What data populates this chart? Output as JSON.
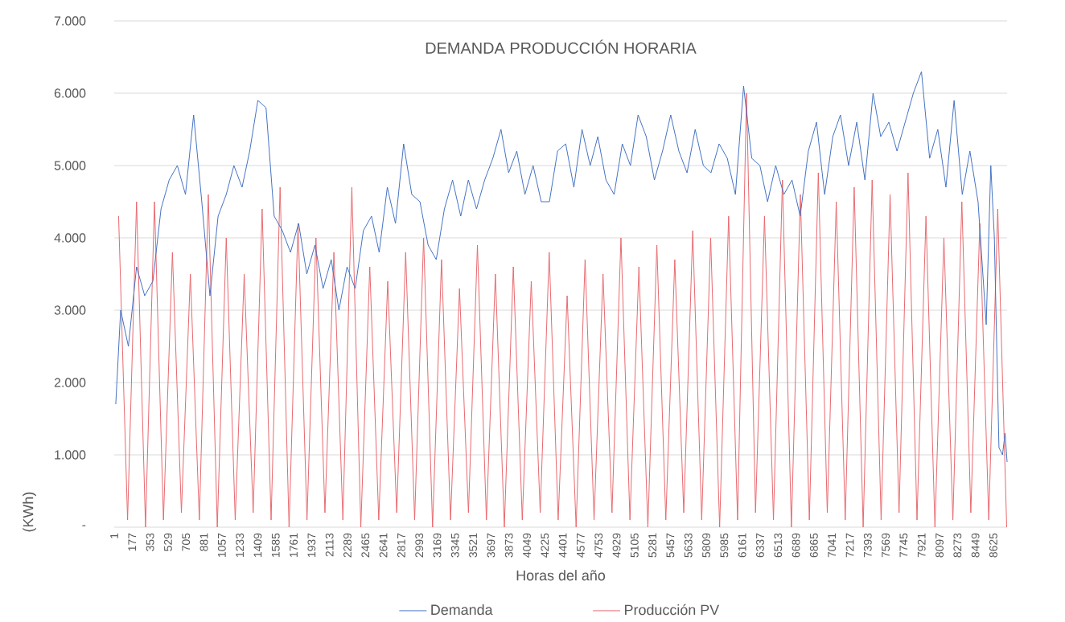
{
  "chart_data": {
    "type": "line",
    "title": "DEMANDA PRODUCCIÓN HORARIA",
    "xlabel": "Horas del año",
    "ylabel": "(KWh)",
    "xlim": [
      1,
      8760
    ],
    "ylim": [
      0,
      7000
    ],
    "xticks": [
      1,
      177,
      353,
      529,
      705,
      881,
      1057,
      1233,
      1409,
      1585,
      1761,
      1937,
      2113,
      2289,
      2465,
      2641,
      2817,
      2993,
      3169,
      3345,
      3521,
      3697,
      3873,
      4049,
      4225,
      4401,
      4577,
      4753,
      4929,
      5105,
      5281,
      5457,
      5633,
      5809,
      5985,
      6161,
      6337,
      6513,
      6689,
      6865,
      7041,
      7217,
      7393,
      7569,
      7745,
      7921,
      8097,
      8273,
      8449,
      8625
    ],
    "yticks": [
      {
        "value": 0,
        "label": "-"
      },
      {
        "value": 1000,
        "label": "1.000"
      },
      {
        "value": 2000,
        "label": "2.000"
      },
      {
        "value": 3000,
        "label": "3.000"
      },
      {
        "value": 4000,
        "label": "4.000"
      },
      {
        "value": 5000,
        "label": "5.000"
      },
      {
        "value": 6000,
        "label": "6.000"
      },
      {
        "value": 7000,
        "label": "7.000"
      }
    ],
    "grid": "y",
    "legend": "bottom",
    "series": [
      {
        "name": "Demanda",
        "color": "#4472c4",
        "x": [
          16,
          64,
          140,
          220,
          300,
          380,
          460,
          540,
          620,
          700,
          780,
          860,
          940,
          1020,
          1100,
          1175,
          1255,
          1330,
          1410,
          1490,
          1570,
          1650,
          1730,
          1810,
          1890,
          1970,
          2050,
          2130,
          2205,
          2285,
          2365,
          2445,
          2525,
          2600,
          2680,
          2760,
          2840,
          2920,
          3000,
          3080,
          3160,
          3240,
          3320,
          3400,
          3475,
          3555,
          3635,
          3715,
          3795,
          3870,
          3950,
          4030,
          4110,
          4190,
          4270,
          4350,
          4430,
          4510,
          4590,
          4670,
          4745,
          4825,
          4905,
          4985,
          5065,
          5140,
          5220,
          5300,
          5380,
          5460,
          5540,
          5620,
          5700,
          5780,
          5855,
          5935,
          6015,
          6095,
          6175,
          6255,
          6335,
          6410,
          6490,
          6570,
          6650,
          6730,
          6810,
          6890,
          6970,
          7050,
          7125,
          7205,
          7285,
          7365,
          7445,
          7520,
          7600,
          7680,
          7760,
          7840,
          7920,
          8000,
          8080,
          8160,
          8240,
          8320,
          8395,
          8475,
          8555,
          8600,
          8635,
          8680,
          8715,
          8740,
          8760
        ],
        "values": [
          1700,
          3000,
          2500,
          3600,
          3200,
          3400,
          4400,
          4800,
          5000,
          4600,
          5700,
          4500,
          3200,
          4300,
          4600,
          5000,
          4700,
          5200,
          5900,
          5800,
          4300,
          4100,
          3800,
          4200,
          3500,
          3900,
          3300,
          3700,
          3000,
          3600,
          3300,
          4100,
          4300,
          3800,
          4700,
          4200,
          5300,
          4600,
          4500,
          3900,
          3700,
          4400,
          4800,
          4300,
          4800,
          4400,
          4800,
          5100,
          5500,
          4900,
          5200,
          4600,
          5000,
          4500,
          4500,
          5200,
          5300,
          4700,
          5500,
          5000,
          5400,
          4800,
          4600,
          5300,
          5000,
          5700,
          5400,
          4800,
          5200,
          5700,
          5200,
          4900,
          5500,
          5000,
          4900,
          5300,
          5100,
          4600,
          6100,
          5100,
          5000,
          4500,
          5000,
          4600,
          4800,
          4300,
          5200,
          5600,
          4600,
          5400,
          5700,
          5000,
          5600,
          4800,
          6000,
          5400,
          5600,
          5200,
          5600,
          6000,
          6300,
          5100,
          5500,
          4700,
          5900,
          4600,
          5200,
          4500,
          2800,
          5000,
          4000,
          1100,
          1000,
          1300,
          900
        ]
      },
      {
        "name": "Producción PV",
        "color": "#e8686e",
        "x": [
          44,
          132,
          220,
          308,
          396,
          484,
          572,
          660,
          748,
          836,
          924,
          1012,
          1100,
          1188,
          1276,
          1364,
          1452,
          1540,
          1628,
          1716,
          1804,
          1892,
          1980,
          2068,
          2156,
          2244,
          2332,
          2420,
          2508,
          2596,
          2684,
          2772,
          2860,
          2948,
          3036,
          3124,
          3212,
          3300,
          3388,
          3476,
          3564,
          3652,
          3740,
          3828,
          3916,
          4004,
          4092,
          4180,
          4268,
          4356,
          4444,
          4532,
          4620,
          4708,
          4796,
          4884,
          4972,
          5060,
          5148,
          5236,
          5324,
          5412,
          5500,
          5588,
          5676,
          5764,
          5852,
          5940,
          6028,
          6116,
          6204,
          6292,
          6380,
          6468,
          6556,
          6644,
          6732,
          6820,
          6908,
          6996,
          7084,
          7172,
          7260,
          7348,
          7436,
          7524,
          7612,
          7700,
          7788,
          7876,
          7964,
          8052,
          8140,
          8228,
          8316,
          8404,
          8492,
          8580,
          8668,
          8756
        ],
        "values": [
          4300,
          100,
          4500,
          0,
          4500,
          100,
          3800,
          200,
          3500,
          100,
          4600,
          0,
          4000,
          100,
          3500,
          200,
          4400,
          100,
          4700,
          0,
          4200,
          100,
          4000,
          200,
          3800,
          100,
          4700,
          0,
          3600,
          100,
          3400,
          200,
          3800,
          100,
          4000,
          0,
          3700,
          100,
          3300,
          200,
          3900,
          100,
          3500,
          0,
          3600,
          100,
          3400,
          200,
          3800,
          100,
          3200,
          0,
          3700,
          100,
          3500,
          200,
          4000,
          100,
          3600,
          0,
          3900,
          100,
          3700,
          200,
          4100,
          100,
          4000,
          0,
          4300,
          100,
          6000,
          200,
          4300,
          100,
          4800,
          0,
          4600,
          100,
          4900,
          200,
          4500,
          100,
          4700,
          0,
          4800,
          100,
          4600,
          200,
          4900,
          100,
          4300,
          0,
          4000,
          100,
          4500,
          200,
          4200,
          100,
          4400,
          0
        ]
      }
    ]
  }
}
